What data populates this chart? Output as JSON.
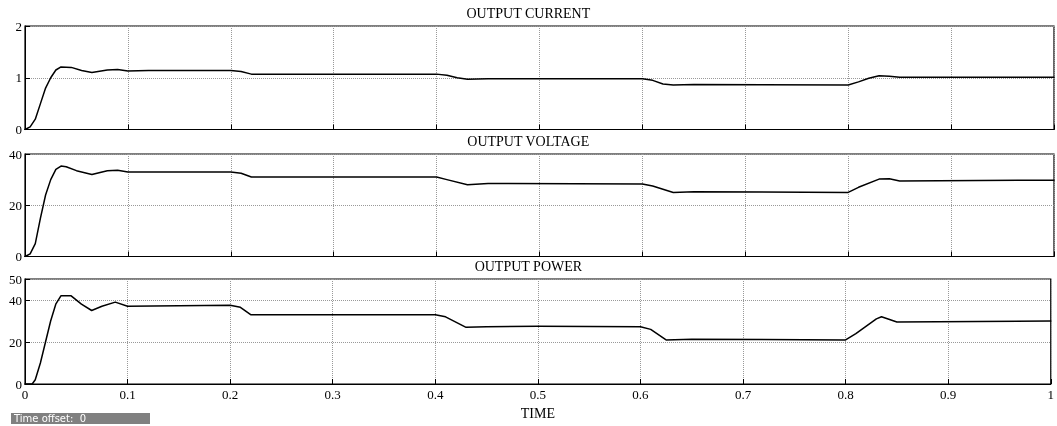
{
  "chart_data": [
    {
      "type": "line",
      "title": "OUTPUT CURRENT",
      "x": [
        0,
        0.005,
        0.01,
        0.015,
        0.02,
        0.025,
        0.03,
        0.035,
        0.045,
        0.055,
        0.065,
        0.08,
        0.09,
        0.1,
        0.12,
        0.2,
        0.21,
        0.22,
        0.4,
        0.41,
        0.42,
        0.43,
        0.45,
        0.6,
        0.61,
        0.62,
        0.63,
        0.65,
        0.8,
        0.81,
        0.82,
        0.83,
        0.84,
        0.85,
        1
      ],
      "series": [
        {
          "color": "#000000",
          "values": [
            0,
            0.05,
            0.2,
            0.5,
            0.8,
            1.0,
            1.15,
            1.21,
            1.2,
            1.14,
            1.1,
            1.15,
            1.16,
            1.13,
            1.14,
            1.14,
            1.12,
            1.07,
            1.07,
            1.05,
            1.0,
            0.97,
            0.98,
            0.98,
            0.95,
            0.88,
            0.86,
            0.87,
            0.86,
            0.92,
            0.99,
            1.04,
            1.03,
            1.01,
            1.01
          ]
        }
      ],
      "xlim": [
        0,
        1
      ],
      "xticks": [
        0,
        0.1,
        0.2,
        0.3,
        0.4,
        0.5,
        0.6,
        0.7,
        0.8,
        0.9,
        1
      ],
      "ylim": [
        0,
        2
      ],
      "yticks": [
        0,
        1,
        2
      ],
      "grid": true,
      "tick_labels": "y",
      "marker": "none",
      "line_style": "solid"
    },
    {
      "type": "line",
      "title": "OUTPUT VOLTAGE",
      "x": [
        0,
        0.005,
        0.01,
        0.015,
        0.02,
        0.025,
        0.03,
        0.035,
        0.04,
        0.05,
        0.065,
        0.08,
        0.09,
        0.1,
        0.2,
        0.21,
        0.22,
        0.4,
        0.41,
        0.43,
        0.45,
        0.6,
        0.61,
        0.63,
        0.65,
        0.8,
        0.81,
        0.83,
        0.84,
        0.85,
        1
      ],
      "series": [
        {
          "color": "#000000",
          "values": [
            0,
            1,
            5,
            15,
            24,
            30,
            34,
            35.3,
            35,
            33.5,
            32,
            33.5,
            33.7,
            33,
            33,
            32.5,
            31,
            31,
            30,
            28,
            28.5,
            28.3,
            27.5,
            25,
            25.3,
            25,
            27,
            30.2,
            30.3,
            29.5,
            29.8
          ]
        }
      ],
      "xlim": [
        0,
        1
      ],
      "xticks": [
        0,
        0.1,
        0.2,
        0.3,
        0.4,
        0.5,
        0.6,
        0.7,
        0.8,
        0.9,
        1
      ],
      "ylim": [
        0,
        40
      ],
      "yticks": [
        0,
        20,
        40
      ],
      "grid": true,
      "tick_labels": "y",
      "marker": "none",
      "line_style": "solid"
    },
    {
      "type": "line",
      "title": "OUTPUT POWER",
      "xlabel": "TIME",
      "annotations": [
        "Time offset:  0"
      ],
      "x": [
        0,
        0.007,
        0.01,
        0.015,
        0.02,
        0.025,
        0.03,
        0.035,
        0.045,
        0.055,
        0.065,
        0.075,
        0.088,
        0.1,
        0.2,
        0.21,
        0.22,
        0.4,
        0.41,
        0.43,
        0.45,
        0.5,
        0.6,
        0.61,
        0.625,
        0.65,
        0.8,
        0.81,
        0.83,
        0.835,
        0.85,
        1
      ],
      "series": [
        {
          "color": "#000000",
          "values": [
            0,
            0,
            2,
            10,
            20,
            30,
            38,
            42,
            42,
            38,
            35,
            37,
            39,
            37,
            37.5,
            36.5,
            33,
            33,
            32,
            27,
            27.3,
            27.5,
            27.3,
            26,
            21,
            21.3,
            21,
            24,
            31,
            32,
            29.5,
            30
          ]
        }
      ],
      "xlim": [
        0,
        1
      ],
      "xticks": [
        0,
        0.1,
        0.2,
        0.3,
        0.4,
        0.5,
        0.6,
        0.7,
        0.8,
        0.9,
        1
      ],
      "ylim": [
        0,
        50
      ],
      "yticks": [
        0,
        20,
        40,
        50
      ],
      "grid": true,
      "marker": "none",
      "line_style": "solid"
    }
  ]
}
